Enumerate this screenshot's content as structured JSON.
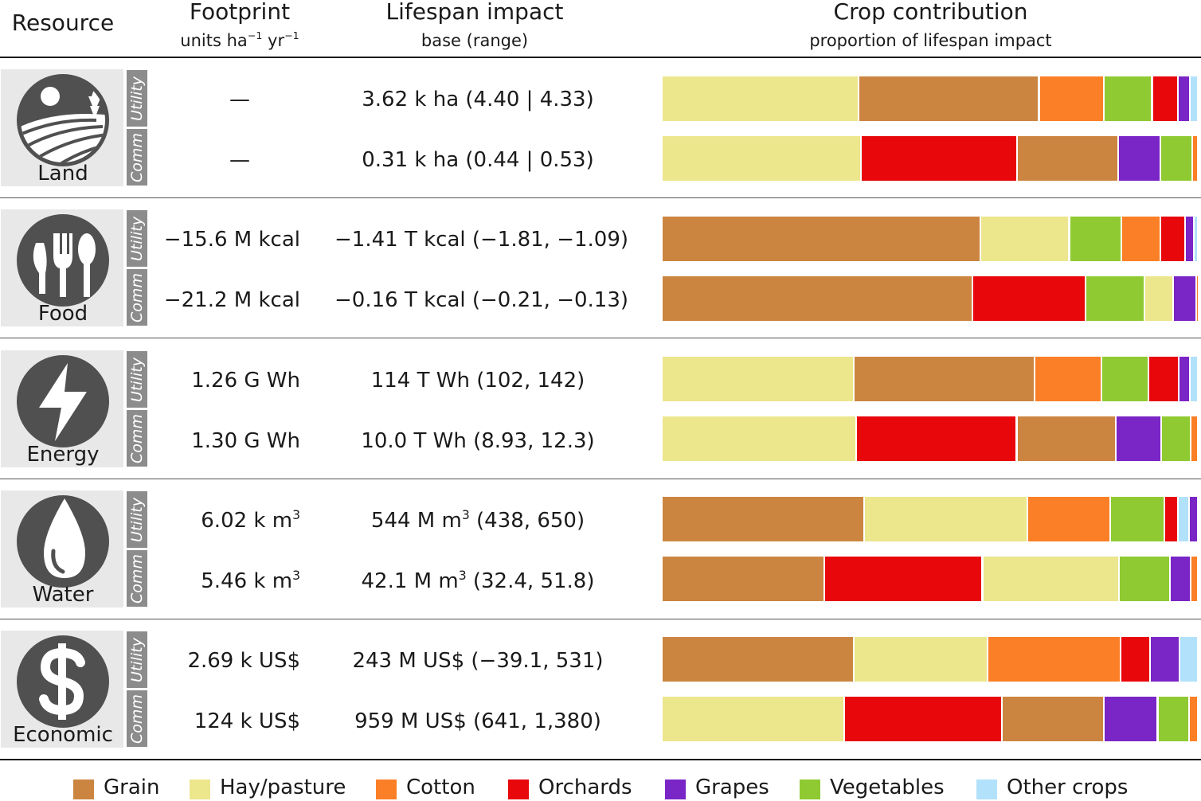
{
  "headers": {
    "resource": "Resource",
    "footprint_title": "Footprint",
    "footprint_sub_html": "units ha<sup>−1</sup> yr<sup>−1</sup>",
    "lifespan_title": "Lifespan impact",
    "lifespan_sub": "base (range)",
    "crop_title": "Crop contribution",
    "crop_sub": "proportion of lifespan impact"
  },
  "tab_labels": {
    "utility": "Utility",
    "comm": "Comm"
  },
  "colors": {
    "Grain": "#cc8540",
    "Hay/pasture": "#ece68d",
    "Cotton": "#fb7f26",
    "Orchards": "#e8070b",
    "Grapes": "#7a25c6",
    "Vegetables": "#8fca32",
    "Other crops": "#b2e1fb",
    "tile_bg": "#e8e8e8",
    "icon": "#505050",
    "tab_bg": "#8c8c8c"
  },
  "resources": [
    {
      "name": "Land",
      "icon": "land-icon",
      "rows": [
        {
          "type": "Utility",
          "footprint_html": "—",
          "lifespan_html": "3.62 k ha (4.40 | 4.33)",
          "crops": [
            [
              "Hay/pasture",
              0.365
            ],
            [
              "Grain",
              0.335
            ],
            [
              "Cotton",
              0.12
            ],
            [
              "Vegetables",
              0.09
            ],
            [
              "Orchards",
              0.048
            ],
            [
              "Grapes",
              0.022
            ],
            [
              "Other crops",
              0.015
            ]
          ]
        },
        {
          "type": "Comm",
          "footprint_html": "—",
          "lifespan_html": "0.31 k ha (0.44 | 0.53)",
          "crops": [
            [
              "Hay/pasture",
              0.372
            ],
            [
              "Orchards",
              0.29
            ],
            [
              "Grain",
              0.19
            ],
            [
              "Grapes",
              0.078
            ],
            [
              "Vegetables",
              0.06
            ],
            [
              "Cotton",
              0.01
            ]
          ]
        }
      ]
    },
    {
      "name": "Food",
      "icon": "food-icon",
      "rows": [
        {
          "type": "Utility",
          "footprint_html": "−15.6 M kcal",
          "lifespan_html": "−1.41 T kcal (−1.81, −1.09)",
          "crops": [
            [
              "Grain",
              0.595
            ],
            [
              "Hay/pasture",
              0.165
            ],
            [
              "Vegetables",
              0.097
            ],
            [
              "Cotton",
              0.073
            ],
            [
              "Orchards",
              0.046
            ],
            [
              "Grapes",
              0.016
            ],
            [
              "Other crops",
              0.008
            ]
          ]
        },
        {
          "type": "Comm",
          "footprint_html": "−21.2 M kcal",
          "lifespan_html": "−0.16 T kcal (−0.21, −0.13)",
          "crops": [
            [
              "Grain",
              0.58
            ],
            [
              "Orchards",
              0.21
            ],
            [
              "Vegetables",
              0.11
            ],
            [
              "Hay/pasture",
              0.054
            ],
            [
              "Grapes",
              0.043
            ],
            [
              "Cotton",
              0.003
            ]
          ]
        }
      ]
    },
    {
      "name": "Energy",
      "icon": "energy-icon",
      "rows": [
        {
          "type": "Utility",
          "footprint_html": "1.26 G Wh",
          "lifespan_html": "114 T Wh (102, 142)",
          "crops": [
            [
              "Hay/pasture",
              0.358
            ],
            [
              "Grain",
              0.337
            ],
            [
              "Cotton",
              0.125
            ],
            [
              "Vegetables",
              0.088
            ],
            [
              "Orchards",
              0.056
            ],
            [
              "Grapes",
              0.021
            ],
            [
              "Other crops",
              0.015
            ]
          ]
        },
        {
          "type": "Comm",
          "footprint_html": "1.30 G Wh",
          "lifespan_html": "10.0 T Wh (8.93, 12.3)",
          "crops": [
            [
              "Hay/pasture",
              0.362
            ],
            [
              "Orchards",
              0.3
            ],
            [
              "Grain",
              0.185
            ],
            [
              "Grapes",
              0.085
            ],
            [
              "Vegetables",
              0.055
            ],
            [
              "Cotton",
              0.013
            ]
          ]
        }
      ]
    },
    {
      "name": "Water",
      "icon": "water-icon",
      "rows": [
        {
          "type": "Utility",
          "footprint_html": "6.02 k m<sup>3</sup>",
          "lifespan_html": "544 M m<sup>3</sup> (438, 650)",
          "crops": [
            [
              "Grain",
              0.377
            ],
            [
              "Hay/pasture",
              0.305
            ],
            [
              "Cotton",
              0.155
            ],
            [
              "Vegetables",
              0.1
            ],
            [
              "Orchards",
              0.026
            ],
            [
              "Other crops",
              0.02
            ],
            [
              "Grapes",
              0.017
            ]
          ]
        },
        {
          "type": "Comm",
          "footprint_html": "5.46 k m<sup>3</sup>",
          "lifespan_html": "42.1 M m<sup>3</sup> (32.4, 51.8)",
          "crops": [
            [
              "Grain",
              0.303
            ],
            [
              "Orchards",
              0.295
            ],
            [
              "Hay/pasture",
              0.255
            ],
            [
              "Vegetables",
              0.095
            ],
            [
              "Grapes",
              0.038
            ],
            [
              "Cotton",
              0.014
            ]
          ]
        }
      ]
    },
    {
      "name": "Economic",
      "icon": "dollar-icon",
      "rows": [
        {
          "type": "Utility",
          "footprint_html": "2.69 k US$",
          "lifespan_html": "243 M US$ (−39.1, 531)",
          "crops": [
            [
              "Grain",
              0.358
            ],
            [
              "Hay/pasture",
              0.25
            ],
            [
              "Cotton",
              0.248
            ],
            [
              "Orchards",
              0.055
            ],
            [
              "Grapes",
              0.055
            ],
            [
              "Other crops",
              0.034
            ]
          ]
        },
        {
          "type": "Comm",
          "footprint_html": "124 k US$",
          "lifespan_html": "959 M US$ (641, 1,380)",
          "crops": [
            [
              "Hay/pasture",
              0.34
            ],
            [
              "Orchards",
              0.295
            ],
            [
              "Grain",
              0.19
            ],
            [
              "Grapes",
              0.1
            ],
            [
              "Vegetables",
              0.058
            ],
            [
              "Cotton",
              0.017
            ]
          ]
        }
      ]
    }
  ],
  "legend": [
    "Grain",
    "Hay/pasture",
    "Cotton",
    "Orchards",
    "Grapes",
    "Vegetables",
    "Other crops"
  ],
  "chart_data": {
    "type": "bar",
    "orientation": "horizontal",
    "stacked": true,
    "normalized": true,
    "title": "Crop contribution",
    "subtitle": "proportion of lifespan impact",
    "categories": [
      "Land Utility",
      "Land Comm",
      "Food Utility",
      "Food Comm",
      "Energy Utility",
      "Energy Comm",
      "Water Utility",
      "Water Comm",
      "Economic Utility",
      "Economic Comm"
    ],
    "xlim": [
      0,
      1
    ],
    "legend_position": "bottom"
  }
}
